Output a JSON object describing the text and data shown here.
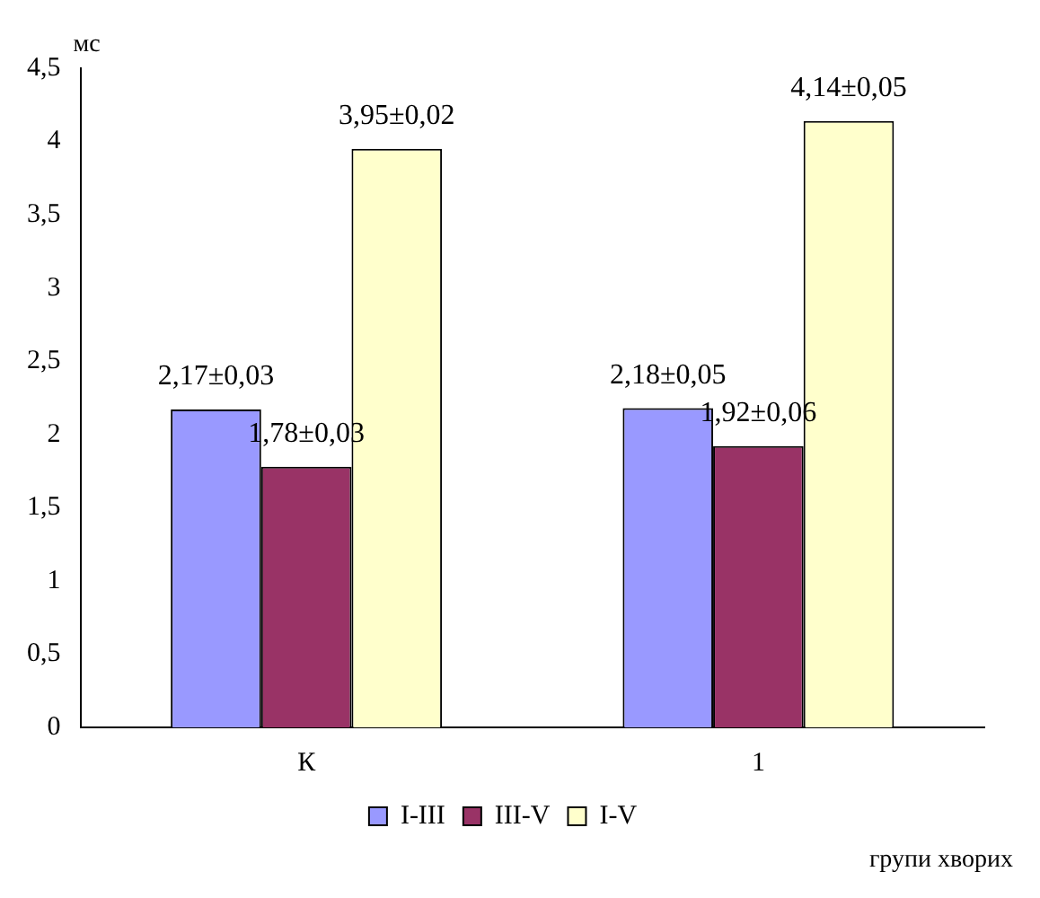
{
  "chart_data": {
    "type": "bar",
    "categories": [
      "К",
      "1"
    ],
    "ylabel": "мс",
    "xlabel": "групи хворих",
    "ylim": [
      0,
      4.5
    ],
    "yticks": [
      0,
      {
        "value": 0.5,
        "label": "0,5"
      },
      1,
      {
        "value": 1.5,
        "label": "1,5"
      },
      2,
      {
        "value": 2.5,
        "label": "2,5"
      },
      3,
      {
        "value": 3.5,
        "label": "3,5"
      },
      4,
      {
        "value": 4.5,
        "label": "4,5"
      }
    ],
    "series": [
      {
        "name": "I-III",
        "color": "#9999ff",
        "values": [
          2.17,
          2.18
        ],
        "value_labels": [
          "2,17±0,03",
          "2,18±0,05"
        ]
      },
      {
        "name": "III-V",
        "color": "#993366",
        "values": [
          1.78,
          1.92
        ],
        "value_labels": [
          "1,78±0,03",
          "1,92±0,06"
        ]
      },
      {
        "name": "I-V",
        "color": "#ffffcc",
        "values": [
          3.95,
          4.14
        ],
        "value_labels": [
          "3,95±0,02",
          "4,14±0,05"
        ]
      }
    ],
    "legend": "bottom",
    "grid": false
  }
}
